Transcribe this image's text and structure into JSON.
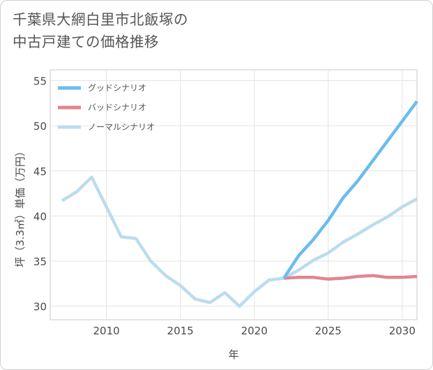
{
  "chart_data": {
    "type": "line",
    "title_line1": "千葉県大網白里市北飯塚の",
    "title_line2": "中古戸建ての価格推移",
    "xlabel": "年",
    "ylabel": "坪（3.3㎡）単価（万円）",
    "xlim": [
      2006.2,
      2031
    ],
    "ylim": [
      28.5,
      56.2
    ],
    "xticks": [
      2010,
      2015,
      2020,
      2025,
      2030
    ],
    "yticks": [
      30,
      35,
      40,
      45,
      50,
      55
    ],
    "grid": true,
    "legend_position": "top-left",
    "series": [
      {
        "name": "グッドシナリオ",
        "color": "#6bbcee",
        "x": [
          2022,
          2023,
          2024,
          2025,
          2026,
          2027,
          2028,
          2029,
          2030,
          2031
        ],
        "y": [
          33.1,
          35.6,
          37.4,
          39.5,
          42.0,
          43.9,
          46.1,
          48.3,
          50.5,
          52.7
        ]
      },
      {
        "name": "バッドシナリオ",
        "color": "#e0868f",
        "x": [
          2022,
          2023,
          2024,
          2025,
          2026,
          2027,
          2028,
          2029,
          2030,
          2031
        ],
        "y": [
          33.1,
          33.2,
          33.2,
          33.0,
          33.1,
          33.3,
          33.4,
          33.2,
          33.2,
          33.3
        ]
      },
      {
        "name": "ノーマルシナリオ",
        "color": "#bcdcec",
        "x": [
          2007,
          2008,
          2009,
          2010,
          2011,
          2012,
          2013,
          2014,
          2015,
          2016,
          2017,
          2018,
          2019,
          2020,
          2021,
          2022,
          2023,
          2024,
          2025,
          2026,
          2027,
          2028,
          2029,
          2030,
          2031
        ],
        "y": [
          41.7,
          42.7,
          44.3,
          41.0,
          37.7,
          37.5,
          35.0,
          33.4,
          32.3,
          30.8,
          30.4,
          31.5,
          30.0,
          31.6,
          32.9,
          33.1,
          34.0,
          35.1,
          35.9,
          37.1,
          38.0,
          39.0,
          39.9,
          41.0,
          41.9
        ]
      }
    ]
  }
}
